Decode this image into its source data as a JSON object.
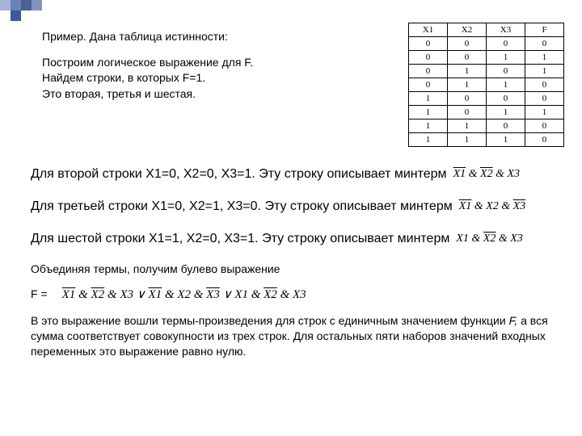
{
  "decoration": {
    "colors": [
      "#a5b3d6",
      "#6c82b6",
      "#4a628f",
      "#8195bf",
      "#ffffff",
      "#ffffff"
    ],
    "accent_color": "#3b5a99"
  },
  "intro": {
    "line1": "Пример. Дана таблица истинности:",
    "line2": "Построим логическое выражение для F.",
    "line3": "Найдем строки, в которых F=1.",
    "line4": "Это вторая, третья и шестая."
  },
  "truth_table": {
    "headers": [
      "X1",
      "X2",
      "X3",
      "F"
    ],
    "rows": [
      [
        "0",
        "0",
        "0",
        "0"
      ],
      [
        "0",
        "0",
        "1",
        "1"
      ],
      [
        "0",
        "1",
        "0",
        "1"
      ],
      [
        "0",
        "1",
        "1",
        "0"
      ],
      [
        "1",
        "0",
        "0",
        "0"
      ],
      [
        "1",
        "0",
        "1",
        "1"
      ],
      [
        "1",
        "1",
        "0",
        "0"
      ],
      [
        "1",
        "1",
        "1",
        "0"
      ]
    ]
  },
  "body": {
    "row2_text": "Для второй строки X1=0, X2=0, X3=1. Эту строку описывает минтерм",
    "row2_m": [
      {
        "t": "X1",
        "o": true
      },
      {
        "t": " & "
      },
      {
        "t": "X2",
        "o": true
      },
      {
        "t": " & "
      },
      {
        "t": "X3"
      }
    ],
    "row3_text": "Для третьей строки X1=0, X2=1, X3=0. Эту строку описывает минтерм",
    "row3_m": [
      {
        "t": "X1",
        "o": true
      },
      {
        "t": " & "
      },
      {
        "t": "X2"
      },
      {
        "t": " & "
      },
      {
        "t": "X3",
        "o": true
      }
    ],
    "row6_text": "Для шестой строки X1=1, X2=0, X3=1. Эту строку описывает минтерм",
    "row6_m": [
      {
        "t": "X1"
      },
      {
        "t": " & "
      },
      {
        "t": "X2",
        "o": true
      },
      {
        "t": " & "
      },
      {
        "t": "X3"
      }
    ],
    "combine_text": "Объединяя термы, получим булево выражение",
    "f_label": "F =",
    "formula": [
      {
        "t": "X1",
        "o": true
      },
      {
        "t": " & "
      },
      {
        "t": "X2",
        "o": true
      },
      {
        "t": " & "
      },
      {
        "t": "X3"
      },
      {
        "t": " ∨ "
      },
      {
        "t": "X1",
        "o": true
      },
      {
        "t": " & "
      },
      {
        "t": "X2"
      },
      {
        "t": " & "
      },
      {
        "t": "X3",
        "o": true
      },
      {
        "t": " ∨ "
      },
      {
        "t": "X1"
      },
      {
        "t": " & "
      },
      {
        "t": "X2",
        "o": true
      },
      {
        "t": " & "
      },
      {
        "t": "X3"
      }
    ],
    "final1": "В это выражение вошли термы-произведения для строк с единичным значением функции ",
    "final_f": "F,",
    "final2": " а вся сумма соответствует совокупности из трех строк. Для остальных пяти наборов значений входных переменных это выражение равно нулю."
  }
}
